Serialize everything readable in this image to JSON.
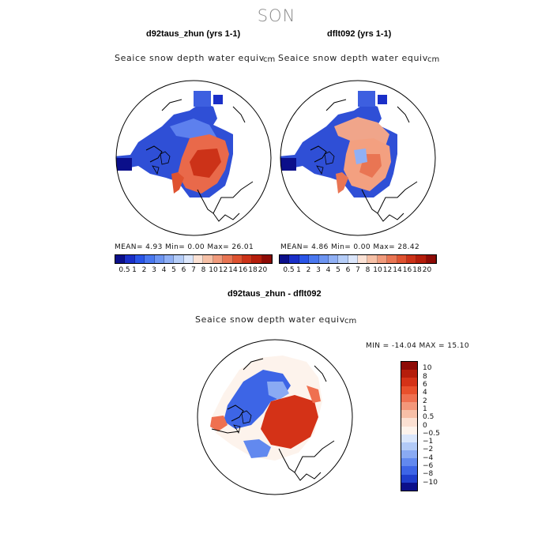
{
  "season": "SON",
  "panel_left": {
    "title": "d92taus_zhun (yrs 1-1)",
    "subtitle": "Seaice snow depth water equiv",
    "unit": "cm",
    "stats": "MEAN=    4.93  Min=     0.00  Max=   26.01"
  },
  "panel_right": {
    "title": "dflt092 (yrs 1-1)",
    "subtitle": "Seaice snow depth water equiv",
    "unit": "cm",
    "stats": "MEAN=    4.86  Min=     0.00  Max=   28.42"
  },
  "panel_diff": {
    "title": "d92taus_zhun - dflt092",
    "subtitle": "Seaice snow depth water equiv",
    "unit": "cm",
    "stats": "MIN = -14.04  MAX =  15.10"
  },
  "colorbar_abs": {
    "ticks": [
      "0.5",
      "1",
      "2",
      "3",
      "4",
      "5",
      "6",
      "7",
      "8",
      "10",
      "12",
      "14",
      "16",
      "18",
      "20"
    ],
    "colors": [
      "#0b0f8a",
      "#1a2fc8",
      "#2a55e8",
      "#4a78f0",
      "#6d95f2",
      "#90b0f5",
      "#b5cdf8",
      "#dbe6fb",
      "#fbe2d5",
      "#f6c0a6",
      "#f19b7c",
      "#e97553",
      "#df5230",
      "#cc3218",
      "#b51d0b",
      "#8e0b06"
    ]
  },
  "colorbar_diff": {
    "ticks": [
      "10",
      "8",
      "6",
      "4",
      "2",
      "1",
      "0.5",
      "0",
      "−0.5",
      "−1",
      "−2",
      "−4",
      "−6",
      "−8",
      "−10"
    ],
    "colors": [
      "#8e0b06",
      "#b51d0b",
      "#d43217",
      "#e8502c",
      "#ef7050",
      "#f3977a",
      "#f7bfa7",
      "#fbe0d2",
      "#fdf3ec",
      "#dae6fb",
      "#b2caf7",
      "#8aaaf3",
      "#6289ef",
      "#3d65e6",
      "#1f3ecc",
      "#0b0f8a"
    ]
  }
}
